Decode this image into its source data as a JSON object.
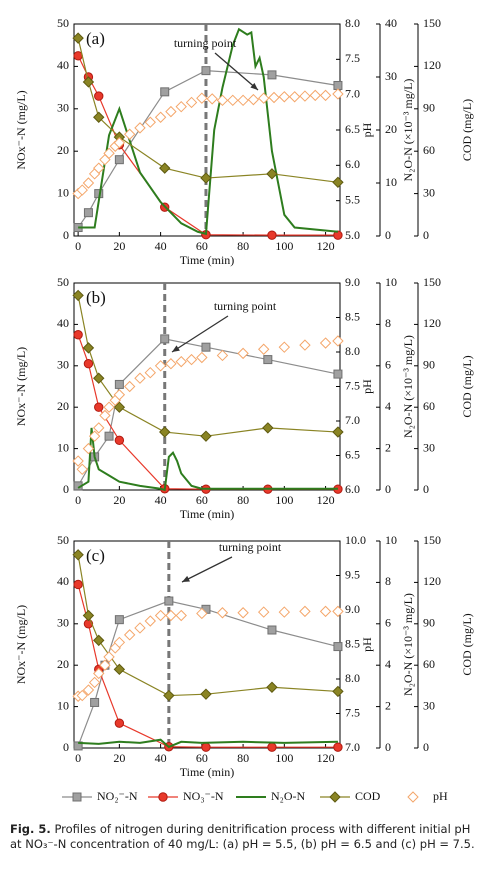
{
  "chart_data": [
    {
      "type": "line",
      "label": "(a)",
      "xlabel": "Time (min)",
      "ylabel": "NOx⁻-N (mg/L)",
      "y2label": "pH",
      "y3label": "N₂O-N (×10⁻³ mg/L)",
      "y4label": "COD (mg/L)",
      "annotation": "turning point",
      "turning_point_x": 62,
      "xlim": [
        -2,
        127
      ],
      "xticks": [
        0,
        20,
        40,
        60,
        80,
        100,
        120
      ],
      "ylim": [
        0,
        50
      ],
      "yticks": [
        0,
        10,
        20,
        30,
        40,
        50
      ],
      "y2lim": [
        5,
        8
      ],
      "y2ticks": [
        {
          "value": 5,
          "label": "5.0"
        },
        5.5,
        {
          "value": 6,
          "label": "6.0"
        },
        6.5,
        {
          "value": 7,
          "label": "7.0"
        },
        7.5,
        {
          "value": 8,
          "label": "8.0"
        }
      ],
      "y3lim": [
        0,
        40
      ],
      "y3ticks": [
        0,
        10,
        20,
        30,
        40
      ],
      "y4lim": [
        0,
        150
      ],
      "y4ticks": [
        0,
        30,
        60,
        90,
        120,
        150
      ],
      "series": [
        {
          "name": "NO₂⁻-N",
          "color": "#8c8c8c",
          "marker": "square",
          "axis": "y",
          "x": [
            0,
            5,
            10,
            20,
            42,
            62,
            94,
            126
          ],
          "values": [
            2,
            5.5,
            10,
            18,
            34,
            39,
            38,
            35.5
          ]
        },
        {
          "name": "NO₃⁻-N",
          "color": "#e8392b",
          "marker": "circle",
          "axis": "y",
          "x": [
            0,
            5,
            10,
            20,
            42,
            62,
            94,
            126
          ],
          "values": [
            42.5,
            37.5,
            33,
            21.5,
            6.8,
            0.3,
            0.2,
            0.2
          ]
        },
        {
          "name": "N₂O-N",
          "color": "#2e7d1e",
          "marker": "none",
          "axis": "y3",
          "x": [
            0,
            8,
            15,
            20,
            25,
            30,
            40,
            50,
            58,
            62,
            66,
            70,
            75,
            78,
            82,
            84,
            86,
            88,
            90,
            94,
            100,
            105,
            126
          ],
          "values": [
            1.6,
            1.6,
            19,
            24,
            18,
            12,
            6.4,
            2.4,
            0.8,
            0.4,
            20,
            28,
            36,
            39,
            38,
            38.4,
            32,
            33.6,
            30,
            16,
            4,
            1.6,
            0.8
          ]
        },
        {
          "name": "COD",
          "color": "#8a8424",
          "marker": "diamond",
          "axis": "y4",
          "x": [
            0,
            5,
            10,
            20,
            42,
            62,
            94,
            126
          ],
          "values": [
            140,
            109,
            84,
            70,
            48,
            41,
            44,
            38
          ]
        },
        {
          "name": "pH",
          "color": "#f4a66a",
          "marker": "hollow-diamond",
          "axis": "y2",
          "x": [
            0,
            2,
            5,
            8,
            10,
            13,
            15,
            18,
            20,
            25,
            30,
            35,
            40,
            45,
            50,
            55,
            60,
            65,
            70,
            75,
            80,
            85,
            90,
            95,
            100,
            105,
            110,
            115,
            120,
            126
          ],
          "values": [
            5.6,
            5.65,
            5.75,
            5.88,
            5.96,
            6.08,
            6.17,
            6.27,
            6.32,
            6.44,
            6.53,
            6.61,
            6.68,
            6.76,
            6.83,
            6.89,
            6.95,
            6.94,
            6.92,
            6.92,
            6.92,
            6.93,
            6.95,
            6.96,
            6.97,
            6.97,
            6.98,
            6.99,
            6.99,
            7.01
          ]
        }
      ]
    },
    {
      "type": "line",
      "label": "(b)",
      "xlabel": "Time (min)",
      "ylabel": "NOx⁻-N (mg/L)",
      "y2label": "pH",
      "y3label": "N₂O-N (×10⁻³ mg/L)",
      "y4label": "COD (mg/L)",
      "annotation": "turning point",
      "turning_point_x": 42,
      "xlim": [
        -2,
        127
      ],
      "xticks": [
        0,
        20,
        40,
        60,
        80,
        100,
        120
      ],
      "ylim": [
        0,
        50
      ],
      "yticks": [
        0,
        10,
        20,
        30,
        40,
        50
      ],
      "y2lim": [
        6,
        9
      ],
      "y2ticks": [
        {
          "value": 6,
          "label": "6.0"
        },
        6.5,
        {
          "value": 7,
          "label": "7.0"
        },
        7.5,
        {
          "value": 8,
          "label": "8.0"
        },
        8.5,
        {
          "value": 9,
          "label": "9.0"
        }
      ],
      "y3lim": [
        0,
        10
      ],
      "y3ticks": [
        0,
        2,
        4,
        6,
        8,
        10
      ],
      "y4lim": [
        0,
        150
      ],
      "y4ticks": [
        0,
        30,
        60,
        90,
        120,
        150
      ],
      "series": [
        {
          "color": "#8c8c8c",
          "marker": "square",
          "axis": "y",
          "x": [
            0,
            8,
            15,
            20,
            42,
            62,
            92,
            126
          ],
          "values": [
            1,
            8,
            13,
            25.5,
            36.5,
            34.5,
            31.5,
            28
          ]
        },
        {
          "color": "#e8392b",
          "marker": "circle",
          "axis": "y",
          "x": [
            0,
            5,
            10,
            20,
            42,
            62,
            92,
            126
          ],
          "values": [
            37.5,
            30.5,
            20,
            12,
            0.3,
            0.2,
            0.2,
            0.2
          ]
        },
        {
          "color": "#2e7d1e",
          "marker": "none",
          "axis": "y3",
          "x": [
            0,
            5,
            6.5,
            8,
            10,
            15,
            20,
            30,
            40,
            42,
            44,
            46,
            48,
            50,
            55,
            60,
            126
          ],
          "values": [
            0.1,
            0.4,
            3,
            1.6,
            1,
            0.7,
            0.4,
            0.2,
            0.06,
            0,
            1.6,
            1.8,
            1.4,
            0.8,
            0.2,
            0.06,
            0.06
          ]
        },
        {
          "color": "#8a8424",
          "marker": "diamond",
          "axis": "y4",
          "x": [
            0,
            5,
            10,
            20,
            42,
            62,
            92,
            126
          ],
          "values": [
            141,
            103,
            81,
            60,
            42,
            39,
            45,
            42
          ]
        },
        {
          "color": "#f4a66a",
          "marker": "hollow-diamond",
          "axis": "y2",
          "x": [
            0,
            2,
            5,
            8,
            10,
            13,
            15,
            18,
            20,
            25,
            30,
            35,
            40,
            45,
            50,
            55,
            60,
            70,
            80,
            90,
            100,
            110,
            120,
            126
          ],
          "values": [
            6.42,
            6.3,
            6.6,
            6.78,
            6.9,
            7.08,
            7.2,
            7.3,
            7.38,
            7.5,
            7.62,
            7.7,
            7.8,
            7.83,
            7.86,
            7.89,
            7.92,
            7.95,
            7.98,
            8.04,
            8.07,
            8.1,
            8.13,
            8.16
          ]
        }
      ]
    },
    {
      "type": "line",
      "label": "(c)",
      "xlabel": "Time (min)",
      "ylabel": "NOx⁻-N (mg/L)",
      "y2label": "pH",
      "y3label": "N₂O-N (×10⁻³ mg/L)",
      "y4label": "COD (mg/L)",
      "annotation": "turning point",
      "turning_point_x": 44,
      "xlim": [
        -2,
        127
      ],
      "xticks": [
        0,
        20,
        40,
        60,
        80,
        100,
        120
      ],
      "ylim": [
        0,
        50
      ],
      "yticks": [
        0,
        10,
        20,
        30,
        40,
        50
      ],
      "y2lim": [
        7,
        10
      ],
      "y2ticks": [
        {
          "value": 7,
          "label": "7.0"
        },
        7.5,
        {
          "value": 8,
          "label": "8.0"
        },
        8.5,
        {
          "value": 9,
          "label": "9.0"
        },
        9.5,
        {
          "value": 10,
          "label": "10.0"
        }
      ],
      "y3lim": [
        0,
        10
      ],
      "y3ticks": [
        0,
        2,
        4,
        6,
        8,
        10
      ],
      "y4lim": [
        0,
        150
      ],
      "y4ticks": [
        0,
        30,
        60,
        90,
        120,
        150
      ],
      "series": [
        {
          "color": "#8c8c8c",
          "marker": "square",
          "axis": "y",
          "x": [
            0,
            8,
            13,
            20,
            44,
            62,
            94,
            126
          ],
          "values": [
            0.5,
            11,
            20,
            31,
            35.5,
            33.5,
            28.5,
            24.5
          ]
        },
        {
          "color": "#e8392b",
          "marker": "circle",
          "axis": "y",
          "x": [
            0,
            5,
            10,
            20,
            44,
            62,
            94,
            126
          ],
          "values": [
            39.5,
            30,
            19,
            6,
            0.3,
            0.2,
            0.2,
            0.2
          ]
        },
        {
          "color": "#2e7d1e",
          "marker": "none",
          "axis": "y3",
          "x": [
            0,
            10,
            20,
            30,
            40,
            44,
            50,
            60,
            80,
            100,
            126
          ],
          "values": [
            0.25,
            0.2,
            0.3,
            0.25,
            0.4,
            0.05,
            0.3,
            0.25,
            0.3,
            0.25,
            0.3
          ]
        },
        {
          "color": "#8a8424",
          "marker": "diamond",
          "axis": "y4",
          "x": [
            0,
            5,
            10,
            20,
            44,
            62,
            94,
            126
          ],
          "values": [
            140,
            96,
            78,
            57,
            38,
            39,
            44,
            41
          ]
        },
        {
          "color": "#f4a66a",
          "marker": "hollow-diamond",
          "axis": "y2",
          "x": [
            0,
            2,
            5,
            8,
            10,
            13,
            15,
            18,
            20,
            25,
            30,
            35,
            40,
            45,
            50,
            60,
            70,
            80,
            90,
            100,
            110,
            120,
            126
          ],
          "values": [
            7.75,
            7.76,
            7.84,
            7.95,
            8.08,
            8.2,
            8.32,
            8.45,
            8.53,
            8.64,
            8.74,
            8.84,
            8.92,
            8.92,
            8.92,
            8.95,
            8.96,
            8.96,
            8.97,
            8.97,
            8.98,
            8.98,
            8.98
          ]
        }
      ]
    }
  ],
  "caption_label": "Fig. 5.",
  "caption": "Profiles of nitrogen during denitrification process with different initial pH at NO₃⁻-N concentration of 40 mg/L: (a) pH = 5.5, (b) pH = 6.5 and (c) pH = 7.5."
}
